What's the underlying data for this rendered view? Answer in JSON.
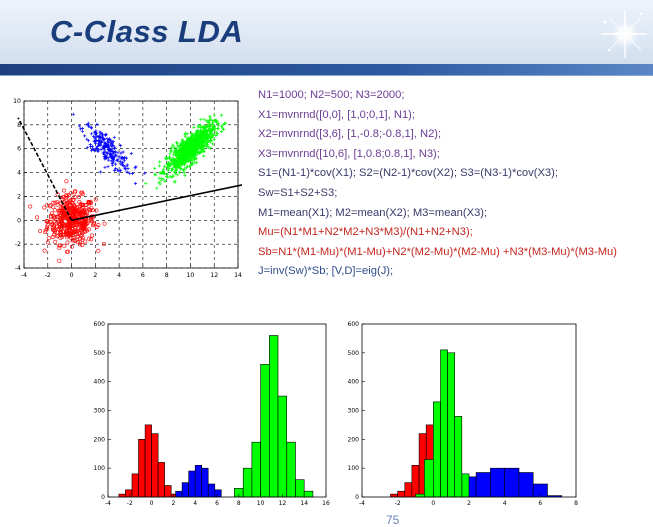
{
  "slide": {
    "title": "C-Class LDA",
    "page_number": "75"
  },
  "code_lines": [
    {
      "text": "N1=1000; N2=500; N3=2000;",
      "color": "purple"
    },
    {
      "text": "X1=mvnrnd([0,0], [1,0;0,1], N1);",
      "color": "purple"
    },
    {
      "text": "X2=mvnrnd([3,6], [1,-0.8;-0.8,1], N2);",
      "color": "purple"
    },
    {
      "text": "X3=mvnrnd([10,6], [1,0.8;0.8,1], N3);",
      "color": "purple"
    },
    {
      "text": "S1=(N1-1)*cov(X1); S2=(N2-1)*cov(X2); S3=(N3-1)*cov(X3);",
      "color": "dark"
    },
    {
      "text": "Sw=S1+S2+S3;",
      "color": "dark"
    },
    {
      "text": "M1=mean(X1); M2=mean(X2); M3=mean(X3);",
      "color": "dark"
    },
    {
      "text": "Mu=(N1*M1+N2*M2+N3*M3)/(N1+N2+N3);",
      "color": "red"
    },
    {
      "text": "Sb=N1*(M1-Mu)*(M1-Mu)+N2*(M2-Mu)*(M2-Mu) +N3*(M3-Mu)*(M3-Mu)",
      "color": "red"
    },
    {
      "text": "J=inv(Sw)*Sb;  [V,D]=eig(J);",
      "color": "blue"
    }
  ],
  "colors": {
    "class1": "#ff0000",
    "class2": "#0000ff",
    "class3": "#00ff00",
    "title": "#1a3d7c"
  },
  "chart_data": [
    {
      "type": "scatter",
      "xlim": [
        -4,
        14
      ],
      "ylim": [
        -4,
        10
      ],
      "xticks": [
        "-4",
        "-2",
        "0",
        "2",
        "4",
        "6",
        "8",
        "10",
        "12",
        "14"
      ],
      "yticks": [
        "10",
        "8",
        "6",
        "4",
        "2",
        "0",
        "-2",
        "-4"
      ],
      "grid": true,
      "series": [
        {
          "center": [
            0,
            0
          ],
          "cov": [
            [
              1,
              0
            ],
            [
              0,
              1
            ]
          ],
          "n": 1000,
          "color": "#ff0000",
          "marker": "o"
        },
        {
          "center": [
            3,
            6
          ],
          "cov": [
            [
              1,
              -0.8
            ],
            [
              -0.8,
              1
            ]
          ],
          "n": 500,
          "color": "#0000ff",
          "marker": "+"
        },
        {
          "center": [
            10,
            6
          ],
          "cov": [
            [
              1,
              0.8
            ],
            [
              0.8,
              1
            ]
          ],
          "n": 2000,
          "color": "#00ff00",
          "marker": "+"
        }
      ],
      "lines": [
        {
          "from": [
            0,
            0
          ],
          "to": [
            -4.5,
            8.6
          ],
          "style": "dashed"
        },
        {
          "from": [
            0,
            0
          ],
          "to": [
            14.5,
            3.0
          ],
          "style": "solid"
        }
      ]
    },
    {
      "type": "bar",
      "xlim": [
        -4,
        16
      ],
      "ylim": [
        0,
        600
      ],
      "xticks": [
        "-4",
        "-2",
        "0",
        "2",
        "4",
        "6",
        "8",
        "10",
        "12",
        "14",
        "16"
      ],
      "yticks": [
        "600",
        "500",
        "400",
        "300",
        "200",
        "100",
        "0"
      ],
      "series": [
        {
          "color": "#ff0000",
          "bins": [
            [
              -3,
              -2.4,
              10
            ],
            [
              -2.4,
              -1.8,
              25
            ],
            [
              -1.8,
              -1.2,
              80
            ],
            [
              -1.2,
              -0.6,
              200
            ],
            [
              -0.6,
              0,
              250
            ],
            [
              0,
              0.6,
              220
            ],
            [
              0.6,
              1.2,
              120
            ],
            [
              1.2,
              1.8,
              40
            ],
            [
              1.8,
              2.4,
              10
            ]
          ]
        },
        {
          "color": "#0000ff",
          "bins": [
            [
              2.2,
              2.8,
              20
            ],
            [
              2.8,
              3.4,
              50
            ],
            [
              3.4,
              4.0,
              90
            ],
            [
              4.0,
              4.6,
              110
            ],
            [
              4.6,
              5.2,
              100
            ],
            [
              5.2,
              5.8,
              45
            ],
            [
              5.8,
              6.4,
              25
            ]
          ]
        },
        {
          "color": "#00ff00",
          "bins": [
            [
              7.6,
              8.4,
              30
            ],
            [
              8.4,
              9.2,
              100
            ],
            [
              9.2,
              10.0,
              190
            ],
            [
              10.0,
              10.8,
              460
            ],
            [
              10.8,
              11.6,
              560
            ],
            [
              11.6,
              12.4,
              350
            ],
            [
              12.4,
              13.2,
              190
            ],
            [
              13.2,
              14.0,
              60
            ],
            [
              14.0,
              14.8,
              20
            ]
          ]
        }
      ]
    },
    {
      "type": "bar",
      "xlim": [
        -4,
        8
      ],
      "ylim": [
        0,
        600
      ],
      "xticks": [
        "-4",
        "-2",
        "0",
        "2",
        "4",
        "6",
        "8"
      ],
      "yticks": [
        "600",
        "500",
        "400",
        "300",
        "200",
        "100",
        "0"
      ],
      "series": [
        {
          "color": "#ff0000",
          "bins": [
            [
              -2.4,
              -2.0,
              10
            ],
            [
              -2.0,
              -1.6,
              20
            ],
            [
              -1.6,
              -1.2,
              50
            ],
            [
              -1.2,
              -0.8,
              110
            ],
            [
              -0.8,
              -0.4,
              220
            ],
            [
              -0.4,
              0,
              250
            ],
            [
              0,
              0.4,
              200
            ],
            [
              0.4,
              0.8,
              100
            ],
            [
              0.8,
              1.2,
              40
            ]
          ]
        },
        {
          "color": "#0000ff",
          "bins": [
            [
              1.6,
              2.4,
              70
            ],
            [
              2.4,
              3.2,
              85
            ],
            [
              3.2,
              4.0,
              100
            ],
            [
              4.0,
              4.8,
              100
            ],
            [
              4.8,
              5.6,
              85
            ],
            [
              5.6,
              6.4,
              45
            ],
            [
              6.4,
              7.2,
              5
            ]
          ]
        },
        {
          "color": "#00ff00",
          "bins": [
            [
              -1.0,
              -0.5,
              10
            ],
            [
              -0.5,
              0,
              130
            ],
            [
              0,
              0.4,
              330
            ],
            [
              0.4,
              0.8,
              510
            ],
            [
              0.8,
              1.2,
              500
            ],
            [
              1.2,
              1.6,
              280
            ],
            [
              1.6,
              2.0,
              80
            ]
          ]
        }
      ]
    }
  ]
}
